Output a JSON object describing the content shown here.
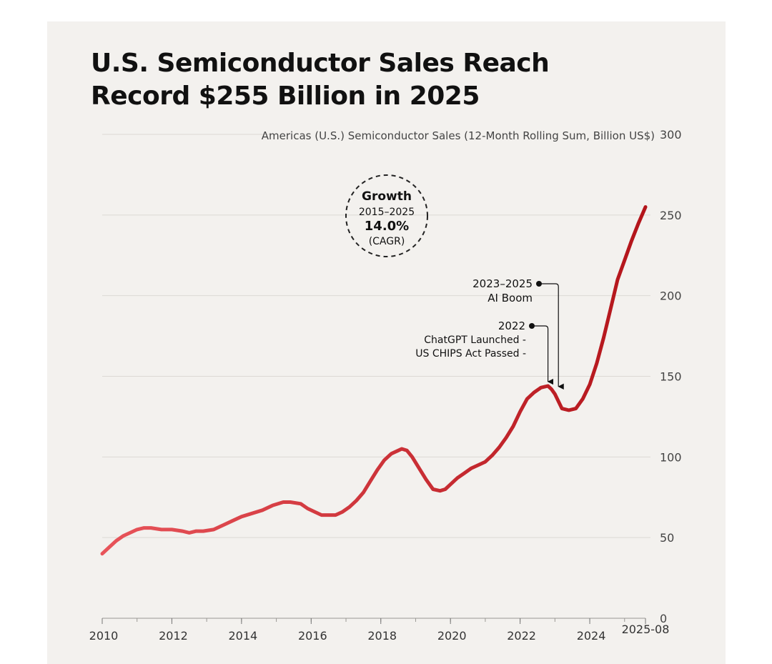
{
  "title_lines": [
    "U.S. Semiconductor Sales Reach",
    "Record $255 Billion in 2025"
  ],
  "colors": {
    "background": "#f3f1ee",
    "line_start": "#e8545a",
    "line_end": "#b3141a",
    "text": "#111111",
    "grid": "#dcd9d4"
  },
  "chart_data": {
    "type": "line",
    "title": "U.S. Semiconductor Sales Reach Record $255 Billion in 2025",
    "ylabel": "Americas (U.S.) Semiconductor Sales (12-Month Rolling Sum, Billion US$)",
    "xlabel": "",
    "ylim": [
      0,
      300
    ],
    "xlim": [
      2010.0,
      2025.6
    ],
    "y_ticks": [
      0,
      50,
      100,
      150,
      200,
      250,
      300
    ],
    "x_ticks": [
      {
        "value": 2010,
        "label": "2010"
      },
      {
        "value": 2012,
        "label": "2012"
      },
      {
        "value": 2014,
        "label": "2014"
      },
      {
        "value": 2016,
        "label": "2016"
      },
      {
        "value": 2018,
        "label": "2018"
      },
      {
        "value": 2020,
        "label": "2020"
      },
      {
        "value": 2022,
        "label": "2022"
      },
      {
        "value": 2024,
        "label": "2024"
      },
      {
        "value": 2025.6,
        "label": "2025-08"
      }
    ],
    "grid": true,
    "series": [
      {
        "name": "Americas 12-month rolling sum",
        "x": [
          2010.0,
          2010.2,
          2010.4,
          2010.6,
          2010.8,
          2011.0,
          2011.2,
          2011.4,
          2011.7,
          2012.0,
          2012.3,
          2012.5,
          2012.7,
          2012.9,
          2013.2,
          2013.5,
          2013.8,
          2014.0,
          2014.3,
          2014.6,
          2014.9,
          2015.2,
          2015.4,
          2015.7,
          2015.9,
          2016.1,
          2016.3,
          2016.5,
          2016.7,
          2016.9,
          2017.1,
          2017.3,
          2017.5,
          2017.7,
          2017.9,
          2018.1,
          2018.3,
          2018.5,
          2018.6,
          2018.75,
          2018.9,
          2019.1,
          2019.3,
          2019.5,
          2019.7,
          2019.85,
          2020.0,
          2020.2,
          2020.4,
          2020.6,
          2020.8,
          2021.0,
          2021.2,
          2021.4,
          2021.6,
          2021.8,
          2022.0,
          2022.2,
          2022.4,
          2022.6,
          2022.8,
          2022.9,
          2023.0,
          2023.2,
          2023.4,
          2023.6,
          2023.8,
          2024.0,
          2024.2,
          2024.4,
          2024.6,
          2024.8,
          2025.0,
          2025.2,
          2025.4,
          2025.6
        ],
        "values": [
          40,
          44,
          48,
          51,
          53,
          55,
          56,
          56,
          55,
          55,
          54,
          53,
          54,
          54,
          55,
          58,
          61,
          63,
          65,
          67,
          70,
          72,
          72,
          71,
          68,
          66,
          64,
          64,
          64,
          66,
          69,
          73,
          78,
          85,
          92,
          98,
          102,
          104,
          105,
          104,
          100,
          93,
          86,
          80,
          79,
          80,
          83,
          87,
          90,
          93,
          95,
          97,
          101,
          106,
          112,
          119,
          128,
          136,
          140,
          143,
          144,
          142,
          139,
          130,
          129,
          130,
          136,
          145,
          158,
          174,
          192,
          210,
          222,
          234,
          245,
          255
        ]
      }
    ],
    "annotations": [
      {
        "lines": [
          "Growth",
          "2015–2025",
          "14.0%",
          "(CAGR)"
        ]
      },
      {
        "lines": [
          "2023–2025",
          "AI Boom"
        ],
        "x": 2023.1,
        "y": 141
      },
      {
        "lines": [
          "2022",
          "ChatGPT Launched -",
          "US CHIPS Act Passed -"
        ],
        "x": 2022.8,
        "y": 144
      }
    ]
  }
}
